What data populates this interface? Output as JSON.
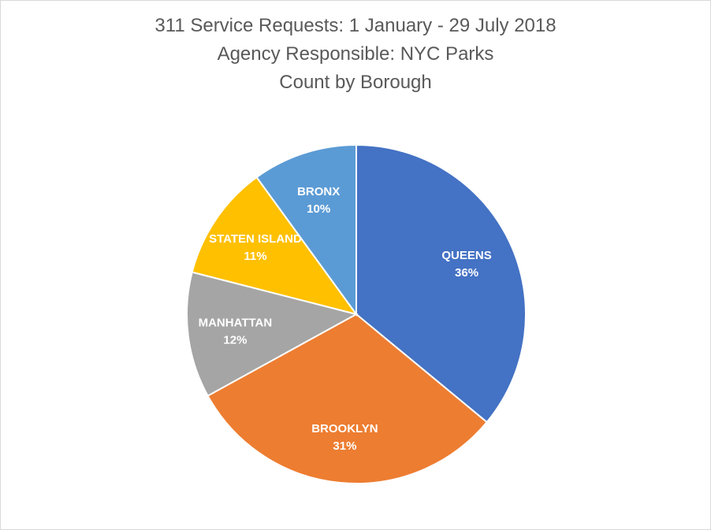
{
  "chart_data": {
    "type": "pie",
    "title_lines": [
      "311 Service Requests: 1 January - 29 July 2018",
      "Agency Responsible:  NYC Parks",
      "Count by Borough"
    ],
    "slices": [
      {
        "label": "QUEENS",
        "value": 36,
        "value_label": "36%",
        "color": "#4472c4"
      },
      {
        "label": "BROOKLYN",
        "value": 31,
        "value_label": "31%",
        "color": "#ed7d31"
      },
      {
        "label": "MANHATTAN",
        "value": 12,
        "value_label": "12%",
        "color": "#a5a5a5"
      },
      {
        "label": "STATEN ISLAND",
        "value": 11,
        "value_label": "11%",
        "color": "#ffc000"
      },
      {
        "label": "BRONX",
        "value": 10,
        "value_label": "10%",
        "color": "#5b9bd5"
      }
    ],
    "start_angle": "top, clockwise",
    "legend": "none"
  }
}
